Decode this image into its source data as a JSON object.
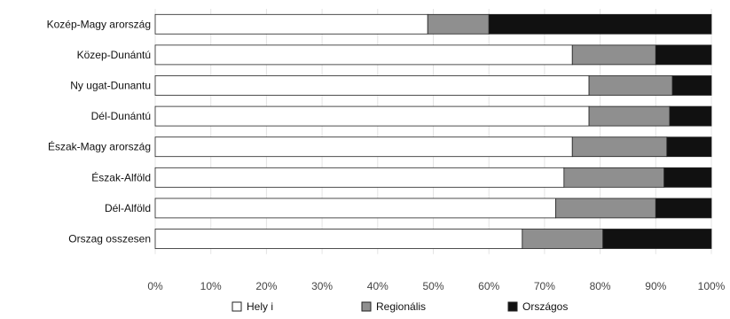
{
  "chart_data": {
    "type": "bar",
    "orientation": "horizontal",
    "stacked": true,
    "percent": true,
    "title": "",
    "xlabel": "",
    "ylabel": "",
    "xlim": [
      0,
      100
    ],
    "grid": true,
    "legend": "bottom",
    "categories": [
      "Kozép-Magy arország",
      "Közep-Dunántú",
      "Ny ugat-Dunantu",
      "Dél-Dunántú",
      "Észak-Magy arország",
      "Észak-Alföld",
      "Dél-Alföld",
      "Orszag osszesen"
    ],
    "x_ticks": [
      "0%",
      "10%",
      "20%",
      "30%",
      "40%",
      "50%",
      "60%",
      "70%",
      "80%",
      "90%",
      "100%"
    ],
    "series": [
      {
        "name": "Hely i",
        "color": "#ffffff",
        "values": [
          49,
          75,
          78,
          78,
          75,
          73.5,
          72,
          66
        ]
      },
      {
        "name": "Regionális",
        "color": "#8f8f8f",
        "values": [
          11,
          15,
          15,
          14.5,
          17,
          18,
          18,
          14.5
        ]
      },
      {
        "name": "Országos",
        "color": "#111111",
        "values": [
          40,
          10,
          7,
          7.5,
          8,
          8.5,
          10,
          19.5
        ]
      }
    ]
  }
}
